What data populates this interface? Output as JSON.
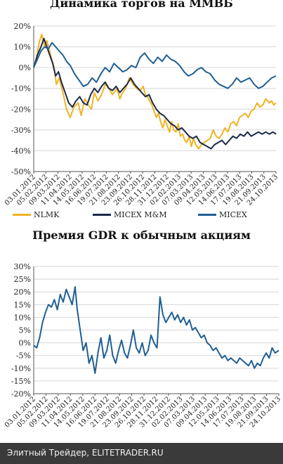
{
  "colors": {
    "nlmk": "#f0b323",
    "micex_mm": "#1b2a48",
    "micex": "#1f5f94",
    "gdr": "#1f5f94",
    "grid": "#d6d6d6",
    "axis": "#555555",
    "footer_bg": "#3a3a3a"
  },
  "footer": {
    "text": "Элитный Трейдер, ELITETRADER.RU"
  },
  "chart_data": [
    {
      "type": "line",
      "title": "Динамика торгов на ММВБ",
      "x_tick_labels": [
        "03.01.2012",
        "05.02.2012",
        "09.03.2012",
        "11.04.2012",
        "14.05.2012",
        "16.06.2012",
        "19.07.2012",
        "21.08.2012",
        "23.09.2012",
        "26.10.2012",
        "28.11.2012",
        "31.12.2012",
        "02.02.2013",
        "07.03.2013",
        "09.04.2013",
        "12.05.2013",
        "14.06.2013",
        "17.07.2013",
        "19.08.2013",
        "21.09.2013",
        "24.10.2013"
      ],
      "y_tick_labels": [
        "20%",
        "10%",
        "0%",
        "-10%",
        "-20%",
        "-30%",
        "-40%",
        "-50%"
      ],
      "ylim": [
        -50,
        20
      ],
      "y_unit": "%",
      "grid": true,
      "legend_position": "bottom",
      "series": [
        {
          "name": "NLMK",
          "color_key": "nlmk",
          "x": [
            0,
            8,
            15,
            22,
            30,
            36,
            42,
            48,
            56,
            62,
            70,
            80,
            90,
            100,
            110,
            122,
            130,
            140,
            150,
            158,
            166,
            176,
            186,
            196,
            206,
            216,
            228,
            236,
            244,
            252,
            262,
            272,
            282,
            292,
            300,
            306,
            312,
            318,
            324,
            330,
            336,
            342,
            348,
            354,
            360,
            366,
            372,
            378,
            384,
            390,
            396,
            402,
            408,
            414,
            420,
            426,
            432,
            438,
            444,
            452,
            460,
            468,
            476,
            484,
            492,
            500,
            508,
            516,
            524,
            532,
            540,
            548,
            556,
            564,
            572,
            580,
            588,
            596,
            604,
            612,
            620,
            628,
            636,
            646,
            652,
            658,
            664
          ],
          "y": [
            0,
            5,
            12,
            16,
            10,
            13,
            9,
            5,
            0,
            -8,
            -5,
            -12,
            -20,
            -24,
            -19,
            -17,
            -23,
            -15,
            -18,
            -20,
            -12,
            -16,
            -13,
            -8,
            -10,
            -13,
            -10,
            -15,
            -12,
            -10,
            -5,
            -8,
            -10,
            -11,
            -9,
            -13,
            -14,
            -16,
            -18,
            -21,
            -24,
            -22,
            -26,
            -29,
            -25,
            -28,
            -31,
            -26,
            -30,
            -31,
            -27,
            -33,
            -32,
            -35,
            -36,
            -33,
            -38,
            -34,
            -37,
            -39,
            -37,
            -36,
            -35,
            -34,
            -30,
            -33,
            -34,
            -32,
            -29,
            -31,
            -27,
            -26,
            -28,
            -24,
            -23,
            -22,
            -24,
            -21,
            -20,
            -17,
            -19,
            -18,
            -15,
            -17,
            -16,
            -18,
            -17
          ]
        },
        {
          "name": "MICEX M&M",
          "color_key": "micex_mm",
          "x": [
            0,
            10,
            20,
            28,
            36,
            44,
            52,
            60,
            68,
            76,
            86,
            96,
            106,
            116,
            126,
            136,
            146,
            156,
            166,
            176,
            186,
            196,
            206,
            216,
            226,
            236,
            246,
            256,
            266,
            276,
            286,
            296,
            306,
            316,
            326,
            336,
            346,
            356,
            366,
            376,
            386,
            396,
            406,
            416,
            426,
            436,
            446,
            456,
            466,
            476,
            486,
            496,
            506,
            516,
            526,
            536,
            546,
            556,
            566,
            576,
            586,
            596,
            606,
            616,
            626,
            636,
            646,
            656,
            664
          ],
          "y": [
            0,
            6,
            10,
            14,
            10,
            6,
            2,
            -4,
            -2,
            -7,
            -12,
            -17,
            -19,
            -16,
            -14,
            -17,
            -18,
            -13,
            -10,
            -12,
            -9,
            -7,
            -10,
            -11,
            -9,
            -12,
            -10,
            -8,
            -5,
            -8,
            -10,
            -12,
            -14,
            -13,
            -17,
            -20,
            -22,
            -23,
            -25,
            -27,
            -28,
            -30,
            -29,
            -31,
            -33,
            -34,
            -33,
            -36,
            -37,
            -38,
            -39,
            -37,
            -36,
            -35,
            -37,
            -35,
            -33,
            -34,
            -32,
            -33,
            -31,
            -33,
            -32,
            -31,
            -32,
            -31,
            -32,
            -31,
            -32
          ]
        },
        {
          "name": "MICEX",
          "color_key": "micex",
          "x": [
            0,
            10,
            20,
            30,
            40,
            50,
            60,
            70,
            80,
            90,
            100,
            112,
            124,
            136,
            148,
            160,
            172,
            184,
            196,
            208,
            220,
            232,
            244,
            256,
            268,
            280,
            292,
            304,
            316,
            328,
            340,
            352,
            364,
            376,
            388,
            400,
            412,
            424,
            436,
            448,
            460,
            472,
            484,
            496,
            508,
            520,
            532,
            544,
            556,
            568,
            580,
            592,
            604,
            616,
            628,
            640,
            652,
            664
          ],
          "y": [
            0,
            4,
            8,
            10,
            9,
            12,
            10,
            8,
            6,
            3,
            1,
            -3,
            -6,
            -9,
            -8,
            -5,
            -7,
            -3,
            0,
            -2,
            2,
            0,
            -2,
            -1,
            1,
            0,
            5,
            7,
            4,
            2,
            5,
            3,
            6,
            4,
            3,
            1,
            -2,
            -4,
            -3,
            -1,
            0,
            -2,
            -3,
            -6,
            -8,
            -9,
            -10,
            -8,
            -5,
            -7,
            -6,
            -5,
            -8,
            -10,
            -9,
            -7,
            -5,
            -4
          ]
        }
      ]
    },
    {
      "type": "line",
      "title": "Премия GDR к обычным акциям",
      "x_tick_labels": [
        "03.01.2012",
        "05.02.2012",
        "09.03.2012",
        "11.04.2012",
        "14.05.2012",
        "16.06.2012",
        "19.07.2012",
        "21.08.2012",
        "23.09.2012",
        "26.10.2012",
        "28.11.2012",
        "31.12.2012",
        "02.02.2013",
        "07.03.2013",
        "09.04.2013",
        "12.05.2013",
        "14.06.2013",
        "17.07.2013",
        "19.08.2013",
        "21.09.2013",
        "24.10.2013"
      ],
      "y_tick_labels": [
        "30%",
        "25%",
        "20%",
        "15%",
        "10%",
        "5%",
        "0%",
        "-5%",
        "-10%",
        "-15%",
        "-20%"
      ],
      "ylim": [
        -20,
        30
      ],
      "y_unit": "%",
      "grid": true,
      "series": [
        {
          "name": "",
          "color_key": "gdr",
          "x": [
            0,
            8,
            16,
            24,
            32,
            40,
            48,
            56,
            64,
            72,
            80,
            88,
            96,
            104,
            112,
            118,
            126,
            134,
            142,
            150,
            158,
            166,
            174,
            182,
            190,
            198,
            206,
            214,
            222,
            230,
            238,
            246,
            254,
            262,
            270,
            278,
            286,
            294,
            302,
            310,
            318,
            326,
            334,
            342,
            350,
            358,
            366,
            374,
            382,
            390,
            398,
            406,
            414,
            422,
            430,
            438,
            446,
            454,
            462,
            470,
            478,
            486,
            494,
            502,
            510,
            518,
            526,
            534,
            542,
            550,
            558,
            566,
            574,
            582,
            590,
            598,
            606,
            614,
            622,
            630,
            638,
            646,
            654,
            664
          ],
          "y": [
            -1,
            -2,
            2,
            8,
            12,
            15,
            14,
            17,
            13,
            19,
            16,
            21,
            18,
            15,
            22,
            13,
            5,
            -3,
            0,
            -8,
            -5,
            -12,
            -4,
            2,
            -6,
            -3,
            3,
            -5,
            -8,
            -3,
            1,
            -4,
            -6,
            -1,
            5,
            -2,
            -4,
            0,
            -5,
            -3,
            3,
            0,
            -2,
            18,
            11,
            8,
            10,
            12,
            9,
            11,
            8,
            10,
            7,
            9,
            5,
            6,
            4,
            2,
            3,
            0,
            -1,
            -3,
            -2,
            -4,
            -6,
            -5,
            -7,
            -6,
            -7,
            -8,
            -6,
            -7,
            -8,
            -9,
            -7,
            -10,
            -8,
            -9,
            -6,
            -4,
            -6,
            -2,
            -4,
            -3
          ]
        }
      ]
    }
  ]
}
